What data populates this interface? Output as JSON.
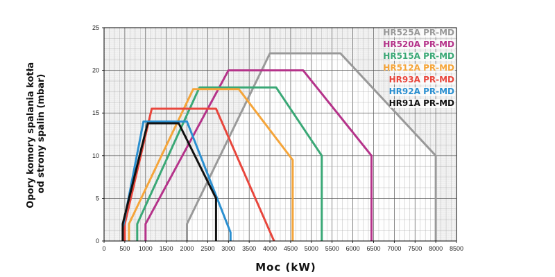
{
  "chart_data": {
    "type": "line",
    "xlabel": "Moc (kW)",
    "ylabel_line1": "Opory komory spalania kotła",
    "ylabel_line2": "od strony spalin (mbar)",
    "xlim": [
      0,
      8500
    ],
    "ylim": [
      0,
      25
    ],
    "x_ticks": [
      0,
      500,
      1000,
      1500,
      2000,
      2500,
      3000,
      3500,
      4000,
      4500,
      5000,
      5500,
      6000,
      6500,
      7000,
      7500,
      8000,
      8500
    ],
    "y_ticks": [
      0,
      5,
      10,
      15,
      20,
      25
    ],
    "grid": true,
    "legend_position": "top-right",
    "series": [
      {
        "name": "HR525A PR-MD",
        "color": "#999999",
        "points": [
          [
            2000,
            0
          ],
          [
            2000,
            2
          ],
          [
            4000,
            22
          ],
          [
            5700,
            22
          ],
          [
            8000,
            10
          ],
          [
            8000,
            0
          ]
        ]
      },
      {
        "name": "HR520A PR-MD",
        "color": "#b5338a",
        "points": [
          [
            1000,
            0
          ],
          [
            1000,
            2
          ],
          [
            3000,
            20
          ],
          [
            4800,
            20
          ],
          [
            6450,
            10
          ],
          [
            6450,
            0
          ]
        ]
      },
      {
        "name": "HR515A PR-MD",
        "color": "#3aa876",
        "points": [
          [
            800,
            0
          ],
          [
            800,
            2
          ],
          [
            2300,
            18
          ],
          [
            4150,
            18
          ],
          [
            5250,
            10
          ],
          [
            5250,
            0
          ]
        ]
      },
      {
        "name": "HR512A PR-MD",
        "color": "#f5a53a",
        "points": [
          [
            600,
            0
          ],
          [
            600,
            2
          ],
          [
            2150,
            17.8
          ],
          [
            3250,
            17.8
          ],
          [
            4550,
            9.5
          ],
          [
            4550,
            0
          ]
        ]
      },
      {
        "name": "HR93A PR-MD",
        "color": "#e8463c",
        "points": [
          [
            500,
            0
          ],
          [
            500,
            2
          ],
          [
            1150,
            15.5
          ],
          [
            2700,
            15.5
          ],
          [
            4100,
            0
          ]
        ]
      },
      {
        "name": "HR92A PR-MD",
        "color": "#2a8fd0",
        "points": [
          [
            450,
            0
          ],
          [
            450,
            1.5
          ],
          [
            950,
            14
          ],
          [
            2000,
            14
          ],
          [
            3050,
            1
          ],
          [
            3050,
            0
          ]
        ]
      },
      {
        "name": "HR91A PR-MD",
        "color": "#111111",
        "points": [
          [
            450,
            0
          ],
          [
            450,
            2
          ],
          [
            1050,
            13.8
          ],
          [
            1800,
            13.8
          ],
          [
            2700,
            5
          ],
          [
            2700,
            0
          ]
        ]
      }
    ]
  }
}
